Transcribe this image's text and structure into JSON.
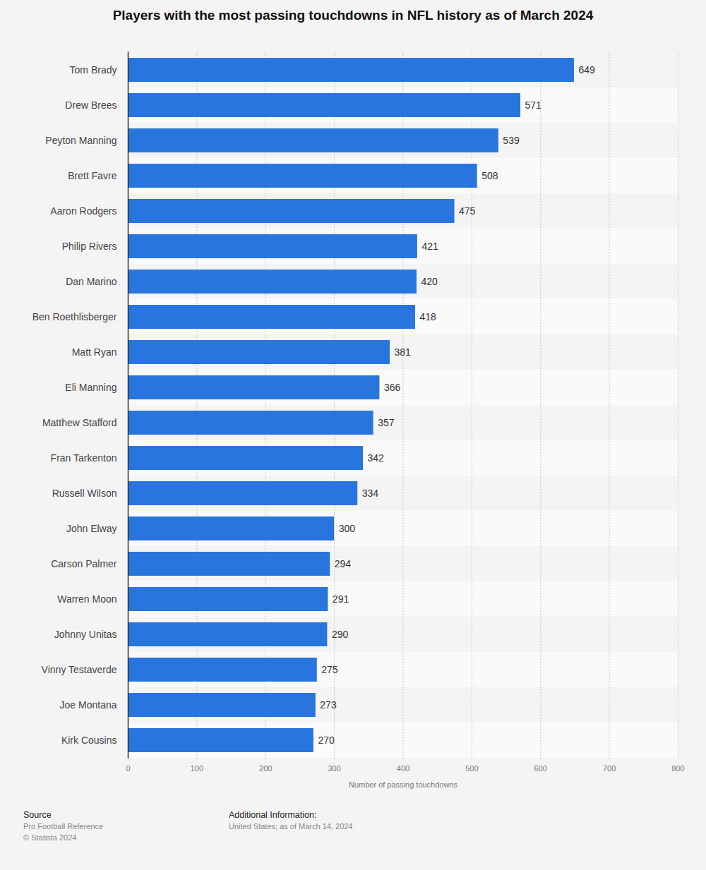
{
  "chart_data": {
    "type": "bar",
    "title": "Players with the most passing touchdowns in NFL history as of March 2024",
    "xlabel": "Number of passing touchdowns",
    "categories": [
      "Tom Brady",
      "Drew Brees",
      "Peyton Manning",
      "Brett Favre",
      "Aaron Rodgers",
      "Philip Rivers",
      "Dan Marino",
      "Ben Roethlisberger",
      "Matt Ryan",
      "Eli Manning",
      "Matthew Stafford",
      "Fran Tarkenton",
      "Russell Wilson",
      "John Elway",
      "Carson Palmer",
      "Warren Moon",
      "Johnny Unitas",
      "Vinny Testaverde",
      "Joe Montana",
      "Kirk Cousins"
    ],
    "values": [
      649,
      571,
      539,
      508,
      475,
      421,
      420,
      418,
      381,
      366,
      357,
      342,
      334,
      300,
      294,
      291,
      290,
      275,
      273,
      270
    ],
    "color": "#2876dd",
    "orientation": "horizontal",
    "xlim": [
      0,
      800
    ],
    "xticks": [
      0,
      100,
      200,
      300,
      400,
      500,
      600,
      700,
      800
    ],
    "grid": true,
    "data_labels": true,
    "source_title": "Source",
    "source": [
      "Pro Football Reference",
      "© Statista 2024"
    ],
    "notes_title": "Additional Information:",
    "notes": [
      "United States; as of March 14, 2024"
    ]
  }
}
